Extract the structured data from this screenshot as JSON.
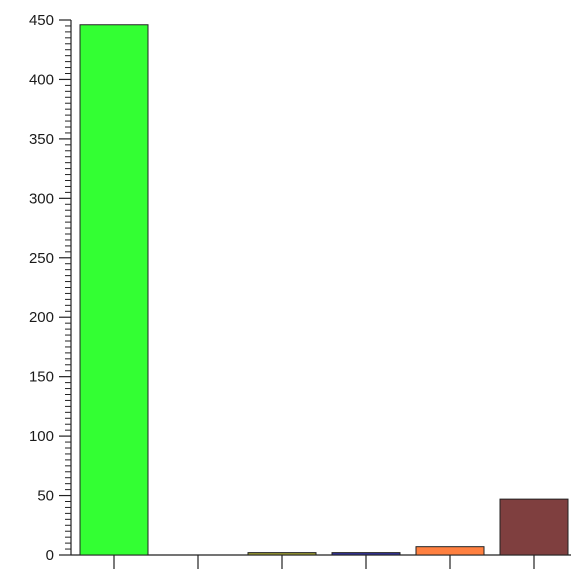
{
  "chart_data": {
    "type": "bar",
    "categories": [
      "",
      "",
      "",
      "",
      "",
      ""
    ],
    "values": [
      446,
      0,
      2,
      2,
      7,
      47
    ],
    "colors": [
      "#33ff33",
      "#ffffff",
      "#999933",
      "#333399",
      "#ff8040",
      "#7f3f3f"
    ],
    "title": "",
    "xlabel": "",
    "ylabel": "",
    "ylim": [
      0,
      450
    ],
    "y_major_ticks": [
      0,
      50,
      100,
      150,
      200,
      250,
      300,
      350,
      400,
      450
    ],
    "y_minor_step": 5,
    "grid": false,
    "legend": "none"
  }
}
